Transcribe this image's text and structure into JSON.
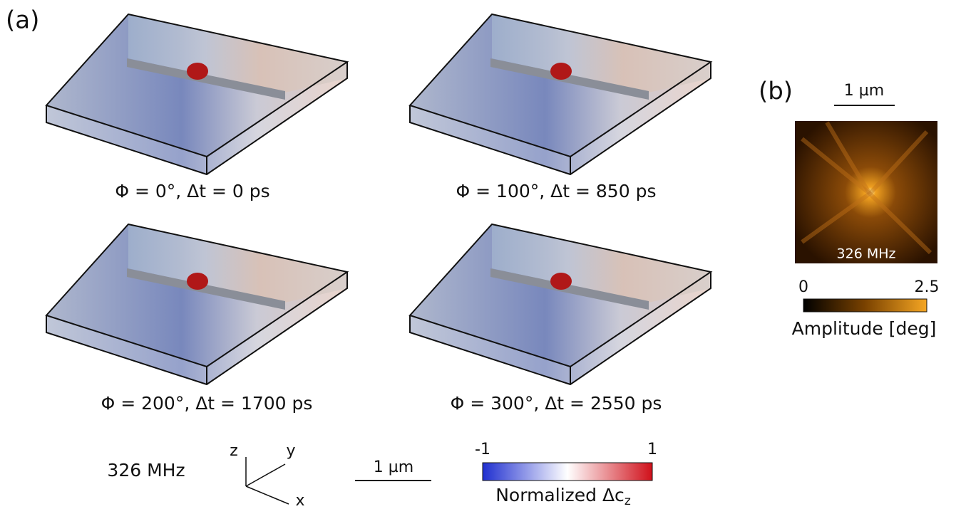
{
  "panel_a": {
    "label": "(a)",
    "snapshots": [
      {
        "caption": "Φ = 0°, Δt = 0 ps"
      },
      {
        "caption": "Φ = 100°, Δt = 850 ps"
      },
      {
        "caption": "Φ = 200°, Δt = 1700 ps"
      },
      {
        "caption": "Φ = 300°, Δt = 2550 ps"
      }
    ],
    "frequency": "326 MHz",
    "axes": {
      "z": "z",
      "y": "y",
      "x": "x"
    },
    "scale_bar": "1 µm",
    "colorbar": {
      "min": -1,
      "max": 1,
      "label": "Normalized Δc",
      "label_subscript": "z"
    }
  },
  "panel_b": {
    "label": "(b)",
    "scale_bar": "1 µm",
    "frequency": "326 MHz",
    "colorbar": {
      "min": 0,
      "max": 2.5,
      "label": "Amplitude [deg]"
    }
  }
}
